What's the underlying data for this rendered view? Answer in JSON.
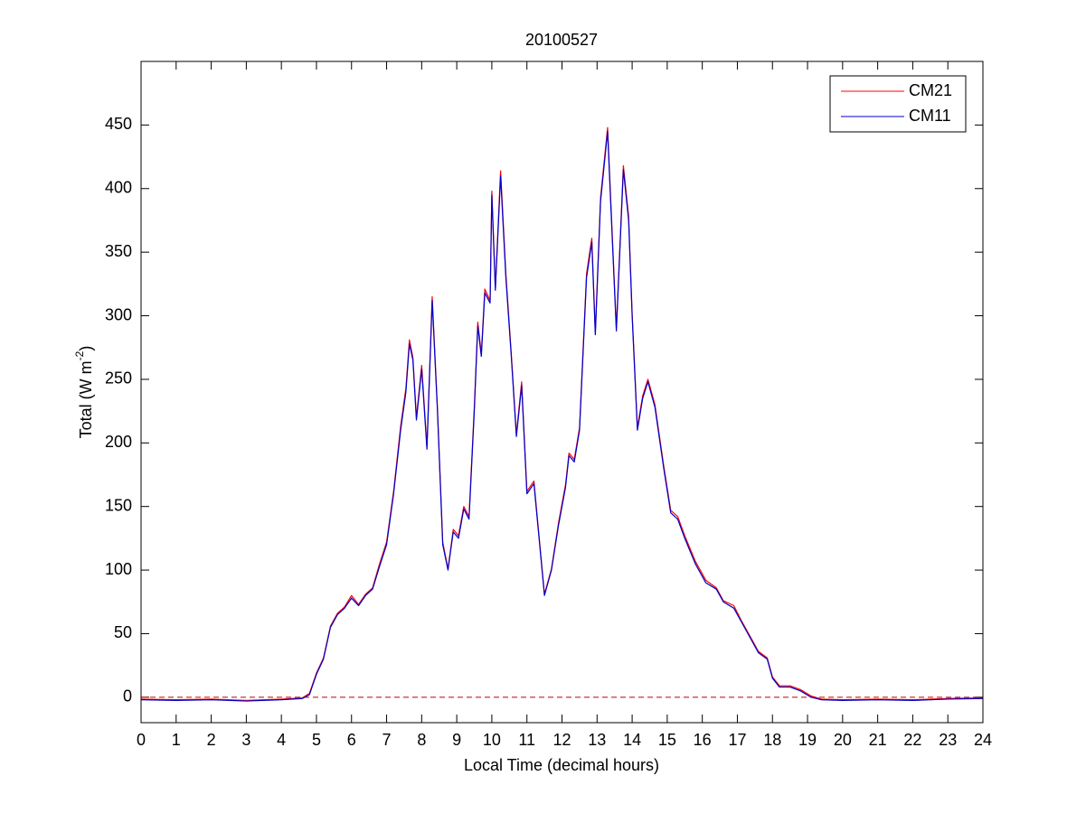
{
  "chart_data": {
    "type": "line",
    "title": "20100527",
    "x_label": "Local Time (decimal hours)",
    "y_label": {
      "text": "Total (W m",
      "sup": "-2",
      "tail": ")"
    },
    "xlim": [
      0,
      24
    ],
    "ylim": [
      -20,
      500
    ],
    "xticks": [
      0,
      1,
      2,
      3,
      4,
      5,
      6,
      7,
      8,
      9,
      10,
      11,
      12,
      13,
      14,
      15,
      16,
      17,
      18,
      19,
      20,
      21,
      22,
      23,
      24
    ],
    "yticks": [
      0,
      50,
      100,
      150,
      200,
      250,
      300,
      350,
      400,
      450
    ],
    "legend": "upper right",
    "reference_line": {
      "value": 0,
      "color": "#c00000",
      "dashed": true
    },
    "x": [
      0,
      1,
      2,
      3,
      4,
      4.6,
      4.8,
      5.0,
      5.2,
      5.4,
      5.6,
      5.8,
      6.0,
      6.2,
      6.4,
      6.6,
      6.8,
      7.0,
      7.2,
      7.4,
      7.55,
      7.65,
      7.75,
      7.85,
      8.0,
      8.15,
      8.3,
      8.45,
      8.6,
      8.75,
      8.9,
      9.05,
      9.2,
      9.35,
      9.5,
      9.6,
      9.7,
      9.8,
      9.95,
      10.0,
      10.1,
      10.25,
      10.4,
      10.55,
      10.7,
      10.85,
      11.0,
      11.2,
      11.5,
      11.7,
      11.9,
      12.1,
      12.2,
      12.35,
      12.5,
      12.7,
      12.85,
      12.95,
      13.1,
      13.3,
      13.45,
      13.55,
      13.75,
      13.9,
      14.0,
      14.15,
      14.3,
      14.45,
      14.65,
      14.9,
      15.1,
      15.3,
      15.5,
      15.8,
      16.1,
      16.4,
      16.6,
      16.9,
      17.1,
      17.4,
      17.6,
      17.85,
      18.0,
      18.2,
      18.5,
      18.8,
      19.1,
      19.4,
      20,
      21,
      22,
      23,
      24
    ],
    "series": [
      {
        "name": "CM21",
        "color": "#ff0000",
        "values": [
          -1.5,
          -2,
          -1.5,
          -2.5,
          -1.5,
          -0.5,
          3,
          19,
          31,
          56,
          66,
          71,
          80,
          73,
          81,
          86,
          105,
          122,
          162,
          213,
          243,
          281,
          267,
          220,
          261,
          197,
          315,
          227,
          122,
          101,
          132,
          127,
          150,
          142,
          228,
          295,
          270,
          321,
          312,
          398,
          322,
          414,
          333,
          272,
          207,
          248,
          162,
          170,
          81,
          101,
          137,
          167,
          192,
          187,
          212,
          333,
          361,
          287,
          393,
          448,
          353,
          290,
          418,
          378,
          302,
          212,
          237,
          250,
          230,
          182,
          147,
          142,
          127,
          107,
          92,
          86,
          76,
          72,
          61,
          46,
          36,
          31,
          16,
          9,
          9,
          6,
          1,
          -1.5,
          -2,
          -1.5,
          -2,
          -1,
          -0.5
        ]
      },
      {
        "name": "CM11",
        "color": "#0000cc",
        "values": [
          -2,
          -2.5,
          -2,
          -3,
          -2,
          -1,
          2,
          18,
          30,
          55,
          65,
          70,
          78,
          72,
          80,
          85,
          103,
          120,
          160,
          210,
          240,
          278,
          265,
          218,
          258,
          195,
          312,
          225,
          120,
          100,
          130,
          125,
          148,
          140,
          225,
          292,
          268,
          318,
          310,
          395,
          320,
          410,
          330,
          270,
          205,
          245,
          160,
          168,
          80,
          100,
          135,
          165,
          190,
          185,
          210,
          330,
          358,
          285,
          390,
          445,
          350,
          288,
          415,
          375,
          300,
          210,
          235,
          248,
          228,
          180,
          145,
          140,
          125,
          105,
          90,
          85,
          75,
          70,
          60,
          45,
          35,
          30,
          15,
          8,
          8,
          5,
          0,
          -2,
          -2.5,
          -2,
          -2.5,
          -1.5,
          -1
        ]
      }
    ]
  }
}
